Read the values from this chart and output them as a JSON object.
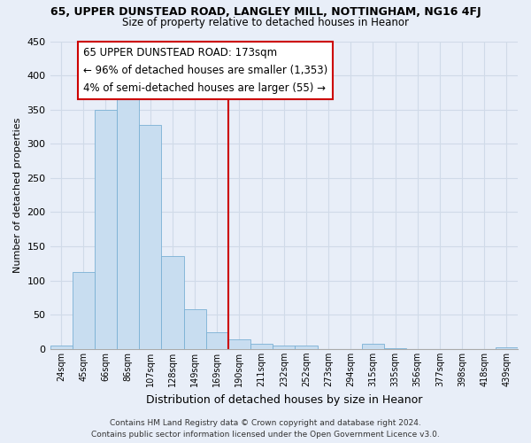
{
  "title": "65, UPPER DUNSTEAD ROAD, LANGLEY MILL, NOTTINGHAM, NG16 4FJ",
  "subtitle": "Size of property relative to detached houses in Heanor",
  "xlabel": "Distribution of detached houses by size in Heanor",
  "ylabel": "Number of detached properties",
  "bar_color": "#c8ddf0",
  "bar_edge_color": "#7ab0d4",
  "categories": [
    "24sqm",
    "45sqm",
    "66sqm",
    "86sqm",
    "107sqm",
    "128sqm",
    "149sqm",
    "169sqm",
    "190sqm",
    "211sqm",
    "232sqm",
    "252sqm",
    "273sqm",
    "294sqm",
    "315sqm",
    "335sqm",
    "356sqm",
    "377sqm",
    "398sqm",
    "418sqm",
    "439sqm"
  ],
  "values": [
    5,
    112,
    350,
    375,
    327,
    136,
    58,
    25,
    14,
    8,
    5,
    5,
    0,
    0,
    7,
    1,
    0,
    0,
    0,
    0,
    3
  ],
  "vline_x_idx": 7,
  "vline_color": "#cc0000",
  "ylim": [
    0,
    450
  ],
  "yticks": [
    0,
    50,
    100,
    150,
    200,
    250,
    300,
    350,
    400,
    450
  ],
  "annotation_title": "65 UPPER DUNSTEAD ROAD: 173sqm",
  "annotation_line1": "← 96% of detached houses are smaller (1,353)",
  "annotation_line2": "4% of semi-detached houses are larger (55) →",
  "annotation_box_color": "#ffffff",
  "annotation_box_edge": "#cc0000",
  "footer1": "Contains HM Land Registry data © Crown copyright and database right 2024.",
  "footer2": "Contains public sector information licensed under the Open Government Licence v3.0.",
  "background_color": "#e8eef8",
  "grid_color": "#d0dae8"
}
